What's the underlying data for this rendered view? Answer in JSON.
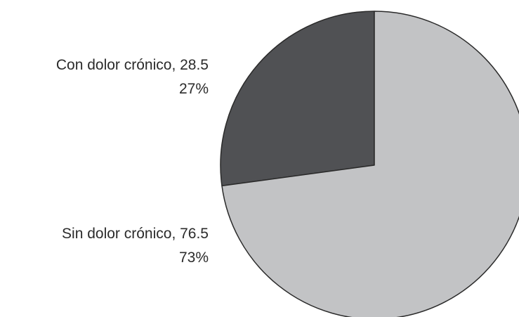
{
  "chart_data": {
    "type": "pie",
    "title": "",
    "slices": [
      {
        "label": "Con dolor crónico",
        "value": 28.5,
        "percent": "27%",
        "label_text": "Con dolor crónico, 28.5",
        "color": "#505154"
      },
      {
        "label": "Sin dolor crónico",
        "value": 76.5,
        "percent": "73%",
        "label_text": "Sin dolor crónico, 76.5",
        "color": "#c2c3c5"
      }
    ],
    "start_angle": "12 o'clock",
    "direction": "counter-clockwise",
    "edge_color": "#2a2a2a"
  }
}
